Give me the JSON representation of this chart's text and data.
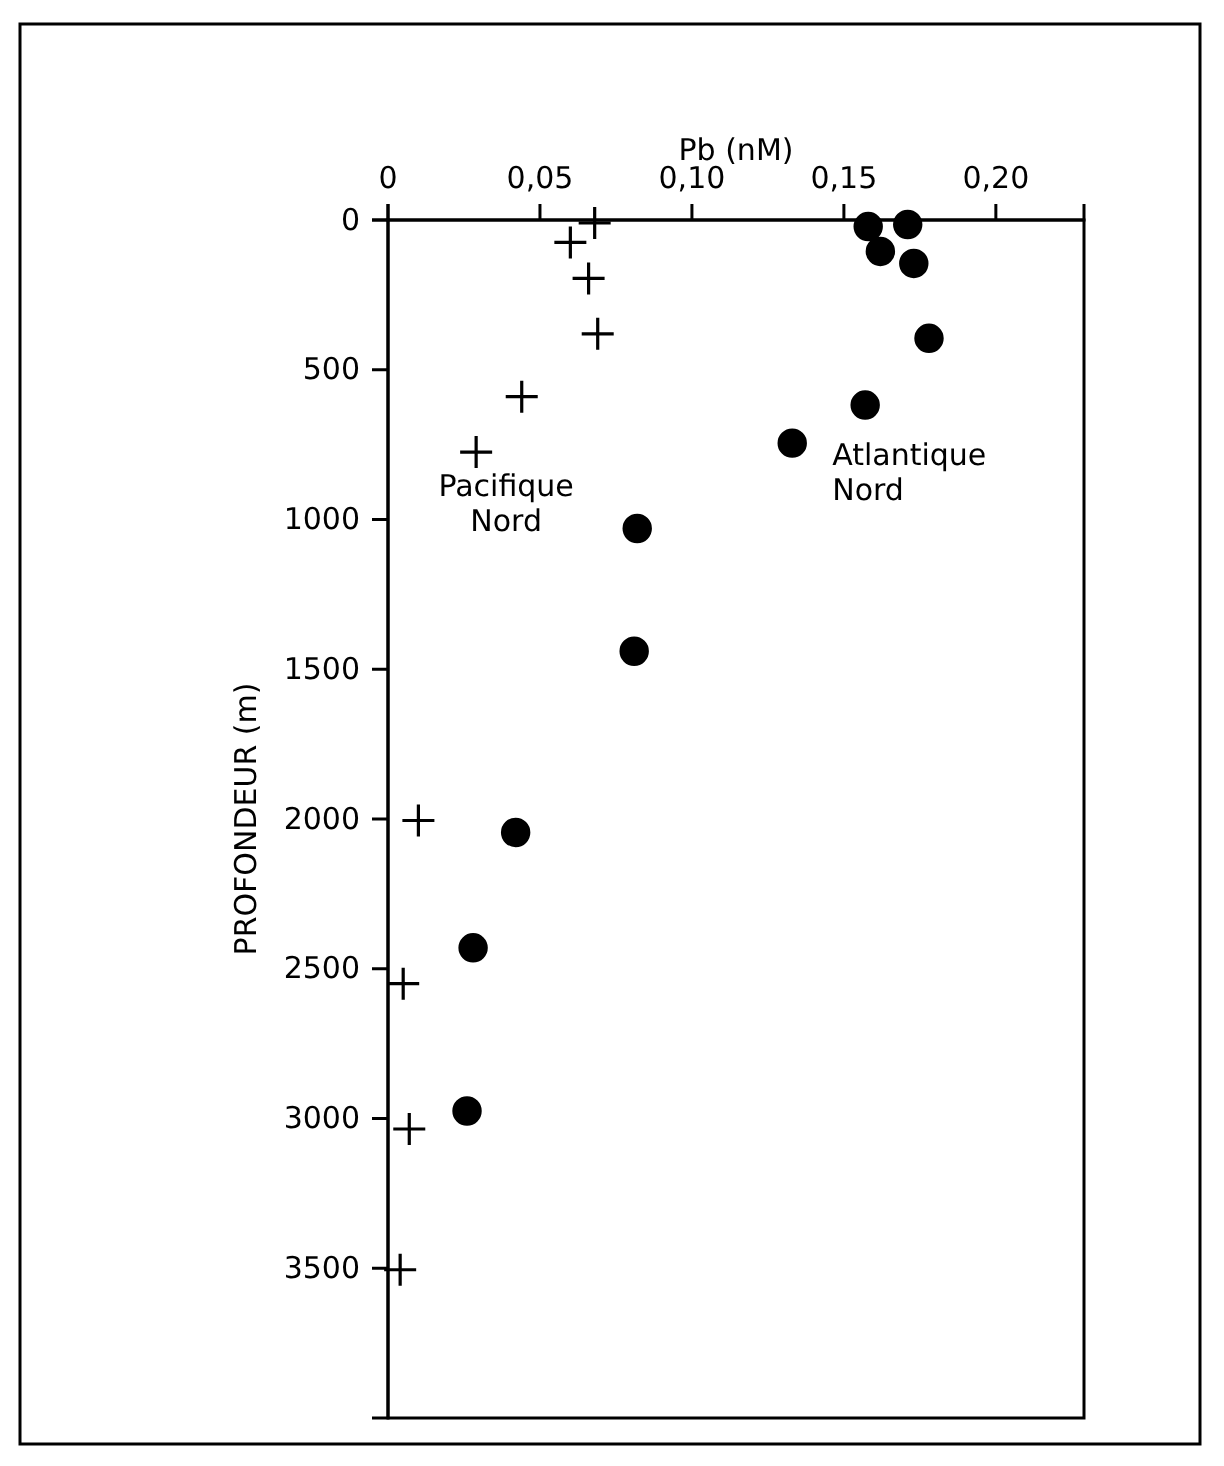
{
  "chart_data": {
    "type": "scatter",
    "xlabel": "Pb (nM)",
    "ylabel": "PROFONDEUR (m)",
    "xlim": [
      0,
      0.229
    ],
    "xticks": [
      0,
      {
        "value": 0.05,
        "label": "0,05"
      },
      {
        "value": 0.1,
        "label": "0,10"
      },
      {
        "value": 0.15,
        "label": "0,15"
      },
      {
        "value": 0.2,
        "label": "0,20"
      }
    ],
    "ylim": [
      4000,
      0
    ],
    "yticks": [
      0,
      500,
      1000,
      1500,
      2000,
      2500,
      3000,
      3500
    ],
    "grid": false,
    "legend": false,
    "series": [
      {
        "name": "Pacifique Nord",
        "color": "#000000",
        "marker": "cross",
        "x": [
          0.068,
          0.06,
          0.066,
          0.069,
          0.044,
          0.029,
          0.01,
          0.005,
          0.007,
          0.004
        ],
        "values": [
          10,
          75,
          195,
          380,
          590,
          775,
          2005,
          2550,
          3035,
          3505
        ]
      },
      {
        "name": "Atlantique Nord",
        "color": "#000000",
        "marker": "circle",
        "x": [
          0.158,
          0.171,
          0.162,
          0.173,
          0.178,
          0.157,
          0.133,
          0.082,
          0.081,
          0.042,
          0.028,
          0.026
        ],
        "values": [
          22,
          15,
          105,
          145,
          395,
          618,
          745,
          1030,
          1440,
          2045,
          2430,
          2975
        ]
      }
    ]
  }
}
